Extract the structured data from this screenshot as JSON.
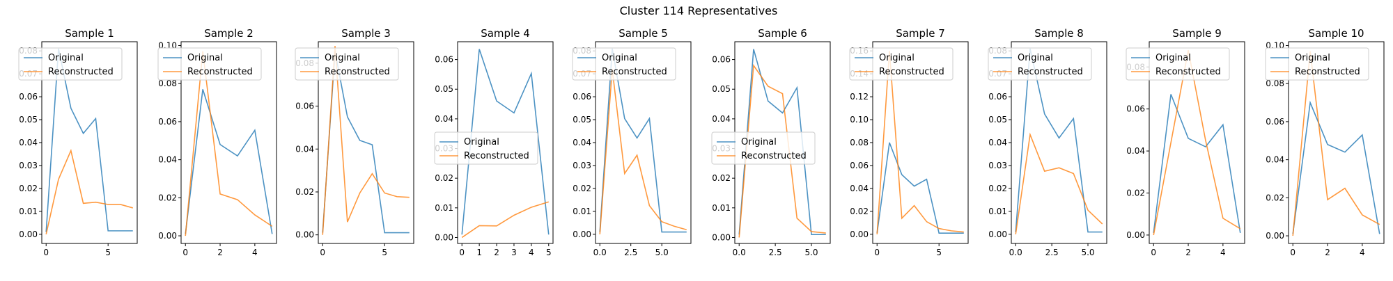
{
  "figure": {
    "title": "Cluster 114 Representatives"
  },
  "colors": {
    "original": "#1f77b4",
    "reconstructed": "#ff7f0e"
  },
  "legend_labels": {
    "original": "Original",
    "reconstructed": "Reconstructed"
  },
  "chart_data": [
    {
      "type": "line",
      "title": "Sample 1",
      "legend": "upper left",
      "grid": false,
      "xlim": [
        -0.35,
        7.35
      ],
      "ylim": [
        -0.004,
        0.084
      ],
      "xticks": [
        0,
        5
      ],
      "yticks": [
        0.0,
        0.01,
        0.02,
        0.03,
        0.04,
        0.05,
        0.06,
        0.07,
        0.08
      ],
      "ytick_labels": [
        "0.00",
        "0.01",
        "0.02",
        "0.03",
        "0.04",
        "0.05",
        "0.06",
        "0.07",
        "0.08"
      ],
      "series": [
        {
          "name": "Original",
          "x": [
            0,
            1,
            2,
            3,
            4,
            5,
            6,
            7
          ],
          "y": [
            0.001,
            0.081,
            0.055,
            0.044,
            0.0505,
            0.0015,
            0.0015,
            0.0015
          ]
        },
        {
          "name": "Reconstructed",
          "x": [
            0,
            1,
            2,
            3,
            4,
            5,
            6,
            7
          ],
          "y": [
            0.0,
            0.024,
            0.0365,
            0.0135,
            0.014,
            0.013,
            0.013,
            0.0115
          ]
        }
      ]
    },
    {
      "type": "line",
      "title": "Sample 2",
      "legend": "upper left",
      "grid": false,
      "xlim": [
        -0.25,
        5.25
      ],
      "ylim": [
        -0.004,
        0.102
      ],
      "xticks": [
        0,
        2,
        4
      ],
      "yticks": [
        0.0,
        0.02,
        0.04,
        0.06,
        0.08,
        0.1
      ],
      "ytick_labels": [
        "0.00",
        "0.02",
        "0.04",
        "0.06",
        "0.08",
        "0.10"
      ],
      "series": [
        {
          "name": "Original",
          "x": [
            0,
            1,
            2,
            3,
            4,
            5
          ],
          "y": [
            0.001,
            0.077,
            0.048,
            0.042,
            0.0555,
            0.001
          ]
        },
        {
          "name": "Reconstructed",
          "x": [
            0,
            1,
            2,
            3,
            4,
            5
          ],
          "y": [
            0.0,
            0.097,
            0.022,
            0.019,
            0.011,
            0.005
          ]
        }
      ]
    },
    {
      "type": "line",
      "title": "Sample 3",
      "legend": "upper left",
      "grid": false,
      "xlim": [
        -0.35,
        7.35
      ],
      "ylim": [
        -0.004,
        0.09
      ],
      "xticks": [
        0,
        5
      ],
      "yticks": [
        0.0,
        0.02,
        0.04,
        0.06,
        0.08
      ],
      "ytick_labels": [
        "0.00",
        "0.02",
        "0.04",
        "0.06",
        "0.08"
      ],
      "series": [
        {
          "name": "Original",
          "x": [
            0,
            1,
            2,
            3,
            4,
            5,
            6,
            7
          ],
          "y": [
            0.001,
            0.0855,
            0.055,
            0.044,
            0.042,
            0.001,
            0.001,
            0.001
          ]
        },
        {
          "name": "Reconstructed",
          "x": [
            0,
            1,
            2,
            3,
            4,
            5,
            6,
            7
          ],
          "y": [
            0.0,
            0.088,
            0.006,
            0.0195,
            0.0285,
            0.0195,
            0.0178,
            0.0175
          ]
        }
      ]
    },
    {
      "type": "line",
      "title": "Sample 4",
      "legend": "center left",
      "grid": false,
      "xlim": [
        -0.25,
        5.25
      ],
      "ylim": [
        -0.002,
        0.066
      ],
      "xticks": [
        0,
        1,
        2,
        3,
        4,
        5
      ],
      "yticks": [
        0.0,
        0.01,
        0.02,
        0.03,
        0.04,
        0.05,
        0.06
      ],
      "ytick_labels": [
        "0.00",
        "0.01",
        "0.02",
        "0.03",
        "0.04",
        "0.05",
        "0.06"
      ],
      "series": [
        {
          "name": "Original",
          "x": [
            0,
            1,
            2,
            3,
            4,
            5
          ],
          "y": [
            0.001,
            0.0635,
            0.046,
            0.042,
            0.0553,
            0.001
          ]
        },
        {
          "name": "Reconstructed",
          "x": [
            0,
            1,
            2,
            3,
            4,
            5
          ],
          "y": [
            0.0,
            0.004,
            0.0039,
            0.0075,
            0.0102,
            0.012
          ]
        }
      ]
    },
    {
      "type": "line",
      "title": "Sample 5",
      "legend": "upper left",
      "grid": false,
      "xlim": [
        -0.35,
        7.35
      ],
      "ylim": [
        -0.004,
        0.084
      ],
      "xticks": [
        0.0,
        2.5,
        5.0
      ],
      "xtick_labels": [
        "0.0",
        "2.5",
        "5.0"
      ],
      "yticks": [
        0.0,
        0.01,
        0.02,
        0.03,
        0.04,
        0.05,
        0.06,
        0.07,
        0.08
      ],
      "ytick_labels": [
        "0.00",
        "0.01",
        "0.02",
        "0.03",
        "0.04",
        "0.05",
        "0.06",
        "0.07",
        "0.08"
      ],
      "series": [
        {
          "name": "Original",
          "x": [
            0,
            1,
            2,
            3,
            4,
            5,
            6,
            7
          ],
          "y": [
            0.001,
            0.081,
            0.0505,
            0.042,
            0.0505,
            0.001,
            0.001,
            0.001
          ]
        },
        {
          "name": "Reconstructed",
          "x": [
            0,
            1,
            2,
            3,
            4,
            5,
            6,
            7
          ],
          "y": [
            0.0,
            0.072,
            0.0265,
            0.0345,
            0.0125,
            0.0055,
            0.0035,
            0.002
          ]
        }
      ]
    },
    {
      "type": "line",
      "title": "Sample 6",
      "legend": "center left",
      "grid": false,
      "xlim": [
        -0.3,
        6.3
      ],
      "ylim": [
        -0.002,
        0.066
      ],
      "xticks": [
        0.0,
        2.5,
        5.0
      ],
      "xtick_labels": [
        "0.0",
        "2.5",
        "5.0"
      ],
      "yticks": [
        0.0,
        0.01,
        0.02,
        0.03,
        0.04,
        0.05,
        0.06
      ],
      "ytick_labels": [
        "0.00",
        "0.01",
        "0.02",
        "0.03",
        "0.04",
        "0.05",
        "0.06"
      ],
      "series": [
        {
          "name": "Original",
          "x": [
            0,
            1,
            2,
            3,
            4,
            5,
            6
          ],
          "y": [
            0.001,
            0.0635,
            0.046,
            0.042,
            0.0505,
            0.001,
            0.001
          ]
        },
        {
          "name": "Reconstructed",
          "x": [
            0,
            1,
            2,
            3,
            4,
            5,
            6
          ],
          "y": [
            0.0,
            0.058,
            0.051,
            0.0485,
            0.0065,
            0.002,
            0.0015
          ]
        }
      ]
    },
    {
      "type": "line",
      "title": "Sample 7",
      "legend": "upper left",
      "grid": false,
      "xlim": [
        -0.35,
        7.35
      ],
      "ylim": [
        -0.008,
        0.168
      ],
      "xticks": [
        0,
        5
      ],
      "yticks": [
        0.0,
        0.02,
        0.04,
        0.06,
        0.08,
        0.1,
        0.12,
        0.14,
        0.16
      ],
      "ytick_labels": [
        "0.00",
        "0.02",
        "0.04",
        "0.06",
        "0.08",
        "0.10",
        "0.12",
        "0.14",
        "0.16"
      ],
      "series": [
        {
          "name": "Original",
          "x": [
            0,
            1,
            2,
            3,
            4,
            5,
            6,
            7
          ],
          "y": [
            0.001,
            0.08,
            0.052,
            0.042,
            0.048,
            0.001,
            0.001,
            0.001
          ]
        },
        {
          "name": "Reconstructed",
          "x": [
            0,
            1,
            2,
            3,
            4,
            5,
            6,
            7
          ],
          "y": [
            0.0,
            0.16,
            0.014,
            0.025,
            0.011,
            0.005,
            0.003,
            0.002
          ]
        }
      ]
    },
    {
      "type": "line",
      "title": "Sample 8",
      "legend": "upper left",
      "grid": false,
      "xlim": [
        -0.3,
        6.3
      ],
      "ylim": [
        -0.004,
        0.084
      ],
      "xticks": [
        0.0,
        2.5,
        5.0
      ],
      "xtick_labels": [
        "0.0",
        "2.5",
        "5.0"
      ],
      "yticks": [
        0.0,
        0.01,
        0.02,
        0.03,
        0.04,
        0.05,
        0.06,
        0.07,
        0.08
      ],
      "ytick_labels": [
        "0.00",
        "0.01",
        "0.02",
        "0.03",
        "0.04",
        "0.05",
        "0.06",
        "0.07",
        "0.08"
      ],
      "series": [
        {
          "name": "Original",
          "x": [
            0,
            1,
            2,
            3,
            4,
            5,
            6
          ],
          "y": [
            0.001,
            0.081,
            0.0525,
            0.042,
            0.0505,
            0.001,
            0.001
          ]
        },
        {
          "name": "Reconstructed",
          "x": [
            0,
            1,
            2,
            3,
            4,
            5,
            6
          ],
          "y": [
            0.0,
            0.0435,
            0.0275,
            0.029,
            0.0265,
            0.0105,
            0.0045
          ]
        }
      ]
    },
    {
      "type": "line",
      "title": "Sample 9",
      "legend": "upper left",
      "grid": false,
      "xlim": [
        -0.25,
        5.25
      ],
      "ylim": [
        -0.004,
        0.092
      ],
      "xticks": [
        0,
        2,
        4
      ],
      "yticks": [
        0.0,
        0.02,
        0.04,
        0.06,
        0.08
      ],
      "ytick_labels": [
        "0.00",
        "0.02",
        "0.04",
        "0.06",
        "0.08"
      ],
      "series": [
        {
          "name": "Original",
          "x": [
            0,
            1,
            2,
            3,
            4,
            5
          ],
          "y": [
            0.001,
            0.067,
            0.046,
            0.042,
            0.0525,
            0.001
          ]
        },
        {
          "name": "Reconstructed",
          "x": [
            0,
            1,
            2,
            3,
            4,
            5
          ],
          "y": [
            0.0,
            0.044,
            0.088,
            0.045,
            0.008,
            0.003
          ]
        }
      ]
    },
    {
      "type": "line",
      "title": "Sample 10",
      "legend": "upper left",
      "grid": false,
      "xlim": [
        -0.25,
        5.25
      ],
      "ylim": [
        -0.004,
        0.102
      ],
      "xticks": [
        0,
        2,
        4
      ],
      "yticks": [
        0.0,
        0.02,
        0.04,
        0.06,
        0.08,
        0.1
      ],
      "ytick_labels": [
        "0.00",
        "0.02",
        "0.04",
        "0.06",
        "0.08",
        "0.10"
      ],
      "series": [
        {
          "name": "Original",
          "x": [
            0,
            1,
            2,
            3,
            4,
            5
          ],
          "y": [
            0.001,
            0.07,
            0.048,
            0.044,
            0.053,
            0.001
          ]
        },
        {
          "name": "Reconstructed",
          "x": [
            0,
            1,
            2,
            3,
            4,
            5
          ],
          "y": [
            0.0,
            0.097,
            0.019,
            0.025,
            0.011,
            0.006
          ]
        }
      ]
    }
  ]
}
